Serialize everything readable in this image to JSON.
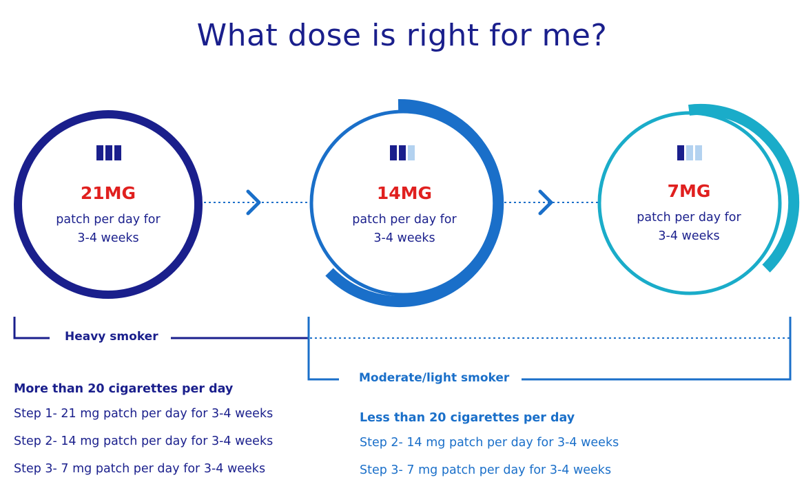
{
  "title": "What dose is right for me?",
  "colors": {
    "navy": "#1a1f8c",
    "blue": "#1a6fc9",
    "teal": "#1aacc9",
    "red": "#e0201f",
    "light_bar": "#b3d2f0"
  },
  "doses": [
    {
      "value": "21MG",
      "desc_line1": "patch per day for",
      "desc_line2": "3-4 weeks",
      "level": 3,
      "color": "navy"
    },
    {
      "value": "14MG",
      "desc_line1": "patch per day for",
      "desc_line2": "3-4 weeks",
      "level": 2,
      "color": "blue"
    },
    {
      "value": "7MG",
      "desc_line1": "patch per day for",
      "desc_line2": "3-4 weeks",
      "level": 1,
      "color": "teal"
    }
  ],
  "groups": {
    "heavy": {
      "label": "Heavy smoker",
      "heading": "More than 20 cigarettes per day",
      "steps": [
        "Step 1- 21 mg patch per day for 3-4 weeks",
        "Step 2- 14 mg patch per day for 3-4 weeks",
        "Step 3- 7 mg patch per day for 3-4 weeks"
      ]
    },
    "moderate": {
      "label": "Moderate/light smoker",
      "heading": "Less than 20 cigarettes per day",
      "steps": [
        "Step 2- 14 mg patch per day for 3-4 weeks",
        "Step 3- 7 mg patch per day for 3-4 weeks"
      ]
    }
  }
}
